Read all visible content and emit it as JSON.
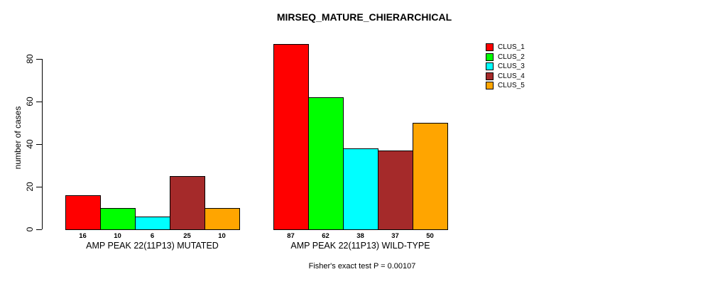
{
  "chart_data": {
    "type": "bar",
    "title": "MIRSEQ_MATURE_CHIERARCHICAL",
    "ylabel": "number of cases",
    "ylim": [
      0,
      87
    ],
    "yticks": [
      0,
      20,
      40,
      60,
      80
    ],
    "grid": false,
    "categories": [
      "AMP PEAK 22(11P13) MUTATED",
      "AMP PEAK 22(11P13) WILD-TYPE"
    ],
    "series": [
      {
        "name": "CLUS_1",
        "color": "#ff0000",
        "values": [
          16,
          87
        ]
      },
      {
        "name": "CLUS_2",
        "color": "#00ff00",
        "values": [
          10,
          62
        ]
      },
      {
        "name": "CLUS_3",
        "color": "#00ffff",
        "values": [
          6,
          38
        ]
      },
      {
        "name": "CLUS_4",
        "color": "#a52a2a",
        "values": [
          25,
          37
        ]
      },
      {
        "name": "CLUS_5",
        "color": "#ffa500",
        "values": [
          10,
          50
        ]
      }
    ],
    "bar_value_labels_shown": true,
    "legend_position": "top-right",
    "footnote": "Fisher's exact test P = 0.00107"
  }
}
